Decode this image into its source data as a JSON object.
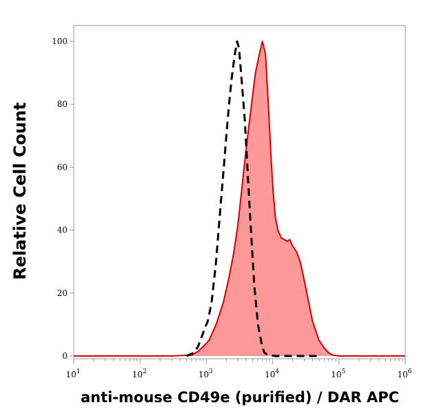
{
  "chart_data": {
    "type": "area",
    "title": "",
    "xlabel": "anti-mouse CD49e (purified) / DAR APC",
    "ylabel": "Relative Cell Count",
    "x_scale": "log",
    "xlim": [
      10,
      1000000
    ],
    "ylim": [
      0,
      100
    ],
    "x_ticks": [
      {
        "value": 10,
        "base": "10",
        "exp": "1"
      },
      {
        "value": 100,
        "base": "10",
        "exp": "2"
      },
      {
        "value": 1000,
        "base": "10",
        "exp": "3"
      },
      {
        "value": 10000,
        "base": "10",
        "exp": "4"
      },
      {
        "value": 100000,
        "base": "10",
        "exp": "5"
      },
      {
        "value": 1000000,
        "base": "10",
        "exp": "6"
      }
    ],
    "y_ticks": [
      {
        "value": 0,
        "label": "0"
      },
      {
        "value": 20,
        "label": "20"
      },
      {
        "value": 40,
        "label": "40"
      },
      {
        "value": 60,
        "label": "60"
      },
      {
        "value": 80,
        "label": "80"
      },
      {
        "value": 100,
        "label": "100"
      }
    ],
    "grid": false,
    "series": [
      {
        "style": "filled",
        "color": "#d40000",
        "fill": "#ff9999",
        "points": [
          [
            10,
            0
          ],
          [
            300,
            0
          ],
          [
            600,
            0.3
          ],
          [
            750,
            1.5
          ],
          [
            900,
            3
          ],
          [
            1100,
            5
          ],
          [
            1400,
            10
          ],
          [
            1800,
            17
          ],
          [
            2200,
            25
          ],
          [
            2600,
            33
          ],
          [
            3000,
            42
          ],
          [
            3300,
            50
          ],
          [
            3700,
            60
          ],
          [
            4200,
            70
          ],
          [
            4800,
            80
          ],
          [
            5500,
            90
          ],
          [
            6300,
            96
          ],
          [
            7000,
            100
          ],
          [
            7800,
            96
          ],
          [
            8500,
            82
          ],
          [
            9000,
            72
          ],
          [
            9500,
            62
          ],
          [
            10200,
            52
          ],
          [
            11000,
            44
          ],
          [
            12000,
            40
          ],
          [
            13500,
            37.5
          ],
          [
            15000,
            37
          ],
          [
            16500,
            36.5
          ],
          [
            18000,
            37
          ],
          [
            20000,
            35
          ],
          [
            23000,
            33
          ],
          [
            26000,
            30
          ],
          [
            30000,
            24
          ],
          [
            35000,
            17
          ],
          [
            40000,
            11
          ],
          [
            50000,
            5
          ],
          [
            60000,
            2.5
          ],
          [
            70000,
            1
          ],
          [
            80000,
            0.3
          ],
          [
            100000,
            0
          ],
          [
            1000000,
            0
          ]
        ]
      },
      {
        "style": "dashed",
        "color": "#000000",
        "points": [
          [
            500,
            0
          ],
          [
            650,
            1
          ],
          [
            750,
            3
          ],
          [
            850,
            6
          ],
          [
            950,
            9
          ],
          [
            1050,
            11
          ],
          [
            1200,
            17
          ],
          [
            1400,
            30
          ],
          [
            1600,
            45
          ],
          [
            1800,
            58
          ],
          [
            2000,
            70
          ],
          [
            2200,
            80
          ],
          [
            2400,
            88
          ],
          [
            2650,
            95
          ],
          [
            2900,
            100
          ],
          [
            3100,
            98
          ],
          [
            3400,
            88
          ],
          [
            3800,
            75
          ],
          [
            4200,
            58
          ],
          [
            4700,
            40
          ],
          [
            5300,
            22
          ],
          [
            6000,
            10
          ],
          [
            6800,
            4
          ],
          [
            7500,
            1
          ],
          [
            8500,
            0.3
          ],
          [
            11000,
            0
          ],
          [
            30000,
            0
          ],
          [
            50000,
            0
          ]
        ]
      }
    ]
  }
}
